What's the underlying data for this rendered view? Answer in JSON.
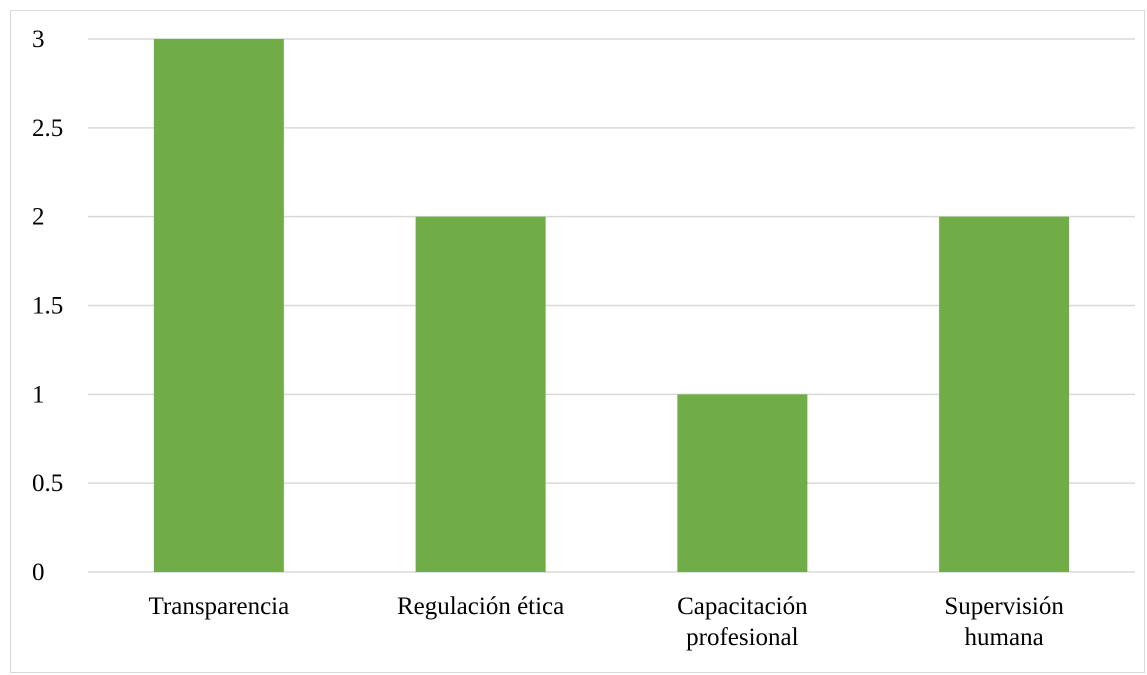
{
  "chart_data": {
    "type": "bar",
    "categories": [
      [
        "Transparencia"
      ],
      [
        "Regulación ética"
      ],
      [
        "Capacitación",
        "profesional"
      ],
      [
        "Supervisión",
        "humana"
      ]
    ],
    "values": [
      3,
      2,
      1,
      2
    ],
    "ylim": [
      0,
      3
    ],
    "yticks": [
      "0",
      "0.5",
      "1",
      "1.5",
      "2",
      "2.5",
      "3"
    ],
    "ytick_values": [
      0,
      0.5,
      1,
      1.5,
      2,
      2.5,
      3
    ],
    "grid": true,
    "legend": "none",
    "bar_color": "#70ad47",
    "grid_color": "#d9d9d9"
  }
}
